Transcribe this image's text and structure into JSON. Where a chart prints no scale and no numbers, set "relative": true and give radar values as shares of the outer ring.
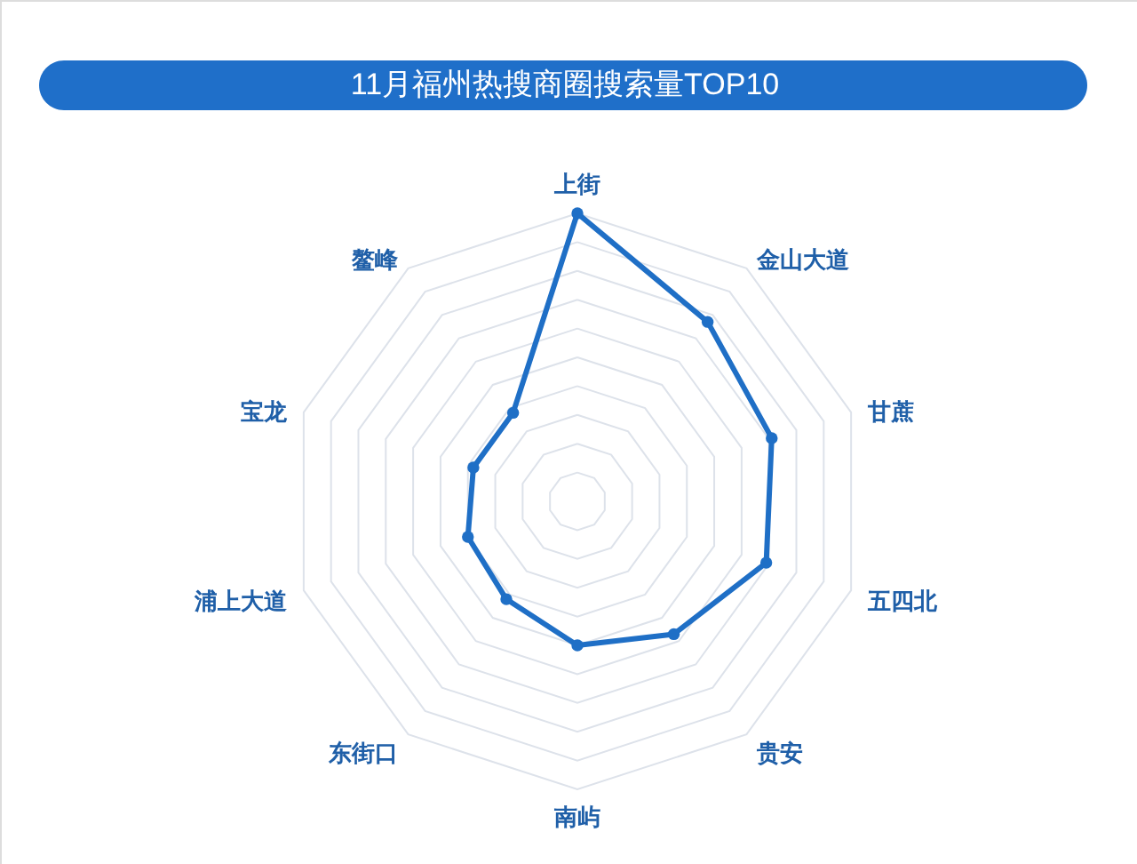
{
  "chart_data": {
    "type": "radar",
    "title": "11月福州热搜商圈搜索量TOP10",
    "categories": [
      "上街",
      "金山大道",
      "甘蔗",
      "五四北",
      "贵安",
      "南屿",
      "东街口",
      "浦上大道",
      "宝龙",
      "鳌峰"
    ],
    "series": [
      {
        "color": "#1f6fc6",
        "values": [
          1.0,
          0.77,
          0.71,
          0.69,
          0.57,
          0.5,
          0.42,
          0.4,
          0.38,
          0.38
        ]
      }
    ],
    "relative": true,
    "marker": "circle",
    "grid": true
  }
}
